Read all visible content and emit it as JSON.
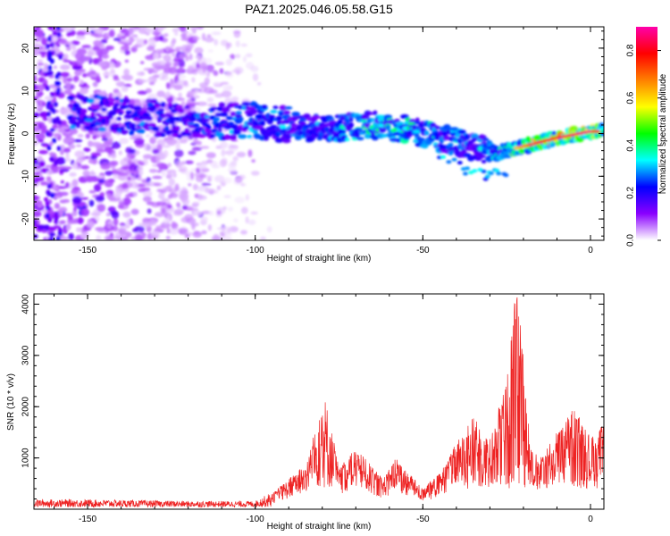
{
  "title": "PAZ1.2025.046.05.58.G15",
  "chart_data": [
    {
      "type": "heatmap",
      "xlabel": "Height of straight line (km)",
      "ylabel": "Frequency (Hz)",
      "xlim": [
        -166,
        4
      ],
      "ylim": [
        -25,
        25
      ],
      "x_ticks": [
        -150,
        -100,
        -50,
        0
      ],
      "y_ticks": [
        -20,
        -10,
        0,
        10,
        20
      ],
      "colorbar": {
        "label": "Normalized spectral amplitude",
        "range": [
          0,
          0.9
        ],
        "ticks": [
          0.0,
          0.2,
          0.4,
          0.6,
          0.8
        ],
        "colors": [
          "#ffffff",
          "#8a00ff",
          "#0000ff",
          "#00ffff",
          "#00ff00",
          "#ffff00",
          "#ff8000",
          "#ff0000",
          "#ff00aa"
        ]
      },
      "ridge": {
        "description_points_x": [
          -150,
          -120,
          -100,
          -80,
          -65,
          -55,
          -45,
          -35,
          -28,
          -20,
          -10,
          0,
          4
        ],
        "description_points_y": [
          5,
          3,
          3,
          1,
          2,
          1,
          -1,
          -3,
          -4.5,
          -3,
          -1,
          0.5,
          0.5
        ],
        "peak_amplitude": [
          0.3,
          0.3,
          0.35,
          0.35,
          0.45,
          0.45,
          0.4,
          0.35,
          0.4,
          0.6,
          0.75,
          0.8,
          0.6
        ]
      },
      "noise_region_x": [
        -166,
        -95
      ]
    },
    {
      "type": "line",
      "xlabel": "Height of straight line (km)",
      "ylabel": "SNR (10 * v/v)",
      "xlim": [
        -166,
        4
      ],
      "ylim": [
        0,
        4200
      ],
      "x_ticks": [
        -150,
        -100,
        -50,
        0
      ],
      "y_ticks": [
        1000,
        2000,
        3000,
        4000
      ],
      "color": "#ee2222",
      "envelope_x": [
        -166,
        -150,
        -120,
        -100,
        -95,
        -85,
        -79,
        -75,
        -70,
        -62,
        -58,
        -50,
        -45,
        -40,
        -35,
        -30,
        -25,
        -23,
        -22,
        -20,
        -18,
        -15,
        -10,
        -5,
        0,
        4
      ],
      "envelope_y": [
        150,
        150,
        120,
        120,
        300,
        900,
        2200,
        800,
        1200,
        600,
        1000,
        400,
        700,
        1300,
        1800,
        1400,
        2500,
        4000,
        4200,
        3200,
        1200,
        1000,
        1500,
        2000,
        1400,
        1700
      ]
    }
  ]
}
